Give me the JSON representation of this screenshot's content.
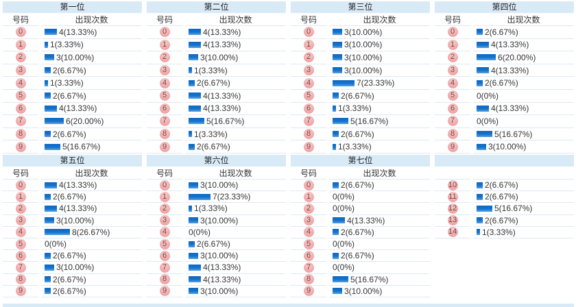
{
  "meta": {
    "col_number_label": "号码",
    "col_count_label": "出现次数"
  },
  "colors": {
    "section_header_bg": "#d9eaf7",
    "row_border": "#dce9f3",
    "bar_blue_top": "#0d67c2",
    "bar_blue_bottom": "#5aa1e0",
    "ball_pink": "#f0a6a6",
    "ball_text": "#6d4343"
  },
  "chart_data": [
    {
      "type": "bar",
      "title": "第一位",
      "show_headers": true,
      "categories": [
        "0",
        "1",
        "2",
        "3",
        "4",
        "5",
        "6",
        "7",
        "8",
        "9"
      ],
      "values": [
        4,
        1,
        3,
        2,
        1,
        2,
        4,
        6,
        2,
        5
      ],
      "labels": [
        "4(13.33%)",
        "1(3.33%)",
        "3(10.00%)",
        "2(6.67%)",
        "1(3.33%)",
        "2(6.67%)",
        "4(13.33%)",
        "6(20.00%)",
        "2(6.67%)",
        "5(16.67%)"
      ]
    },
    {
      "type": "bar",
      "title": "第二位",
      "show_headers": true,
      "categories": [
        "0",
        "1",
        "2",
        "3",
        "4",
        "5",
        "6",
        "7",
        "8",
        "9"
      ],
      "values": [
        4,
        4,
        3,
        1,
        2,
        4,
        4,
        5,
        1,
        2
      ],
      "labels": [
        "4(13.33%)",
        "4(13.33%)",
        "3(10.00%)",
        "1(3.33%)",
        "2(6.67%)",
        "4(13.33%)",
        "4(13.33%)",
        "5(16.67%)",
        "1(3.33%)",
        "2(6.67%)"
      ]
    },
    {
      "type": "bar",
      "title": "第三位",
      "show_headers": true,
      "categories": [
        "0",
        "1",
        "2",
        "3",
        "4",
        "5",
        "6",
        "7",
        "8",
        "9"
      ],
      "values": [
        3,
        3,
        3,
        3,
        7,
        2,
        1,
        5,
        2,
        1
      ],
      "labels": [
        "3(10.00%)",
        "3(10.00%)",
        "3(10.00%)",
        "3(10.00%)",
        "7(23.33%)",
        "2(6.67%)",
        "1(3.33%)",
        "5(16.67%)",
        "2(6.67%)",
        "1(3.33%)"
      ]
    },
    {
      "type": "bar",
      "title": "第四位",
      "show_headers": true,
      "categories": [
        "0",
        "1",
        "2",
        "3",
        "4",
        "5",
        "6",
        "7",
        "8",
        "9"
      ],
      "values": [
        2,
        4,
        6,
        4,
        2,
        0,
        4,
        0,
        5,
        3
      ],
      "labels": [
        "2(6.67%)",
        "4(13.33%)",
        "6(20.00%)",
        "4(13.33%)",
        "2(6.67%)",
        "0(0%)",
        "4(13.33%)",
        "0(0%)",
        "5(16.67%)",
        "3(10.00%)"
      ]
    },
    {
      "type": "bar",
      "title": "第五位",
      "show_headers": true,
      "categories": [
        "0",
        "1",
        "2",
        "3",
        "4",
        "5",
        "6",
        "7",
        "8",
        "9"
      ],
      "values": [
        4,
        2,
        4,
        3,
        8,
        0,
        2,
        3,
        2,
        2
      ],
      "labels": [
        "4(13.33%)",
        "2(6.67%)",
        "4(13.33%)",
        "3(10.00%)",
        "8(26.67%)",
        "0(0%)",
        "2(6.67%)",
        "3(10.00%)",
        "2(6.67%)",
        "2(6.67%)"
      ]
    },
    {
      "type": "bar",
      "title": "第六位",
      "show_headers": true,
      "categories": [
        "0",
        "1",
        "2",
        "3",
        "4",
        "5",
        "6",
        "7",
        "8",
        "9"
      ],
      "values": [
        3,
        7,
        1,
        3,
        0,
        2,
        3,
        4,
        4,
        3
      ],
      "labels": [
        "3(10.00%)",
        "7(23.33%)",
        "1(3.33%)",
        "3(10.00%)",
        "0(0%)",
        "2(6.67%)",
        "3(10.00%)",
        "4(13.33%)",
        "4(13.33%)",
        "3(10.00%)"
      ]
    },
    {
      "type": "bar",
      "title": "第七位",
      "show_headers": true,
      "categories": [
        "0",
        "1",
        "2",
        "3",
        "4",
        "5",
        "6",
        "7",
        "8",
        "9"
      ],
      "values": [
        2,
        0,
        0,
        4,
        2,
        0,
        2,
        0,
        5,
        3
      ],
      "labels": [
        "2(6.67%)",
        "0(0%)",
        "0(0%)",
        "4(13.33%)",
        "2(6.67%)",
        "0(0%)",
        "2(6.67%)",
        "0(0%)",
        "5(16.67%)",
        "3(10.00%)"
      ]
    },
    {
      "type": "bar",
      "title": "",
      "show_headers": false,
      "categories": [
        "10",
        "11",
        "12",
        "13",
        "14"
      ],
      "values": [
        2,
        2,
        5,
        2,
        1
      ],
      "labels": [
        "2(6.67%)",
        "2(6.67%)",
        "5(16.67%)",
        "2(6.67%)",
        "1(3.33%)"
      ]
    }
  ]
}
